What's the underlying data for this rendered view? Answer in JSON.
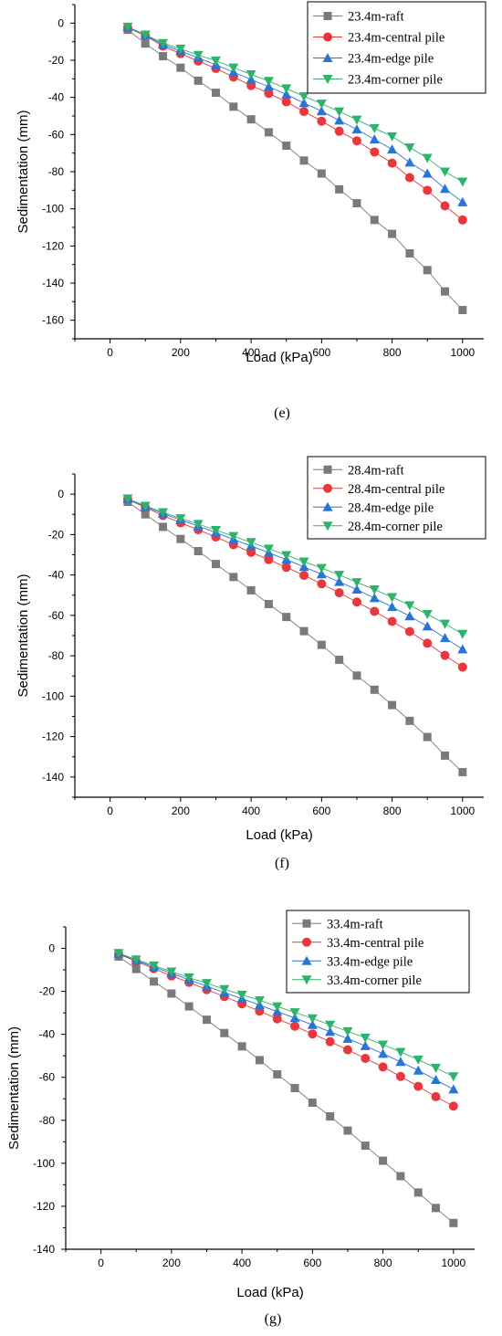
{
  "chart_data": [
    {
      "type": "line",
      "panel_label": "(e)",
      "xlabel": "Load (kPa)",
      "ylabel": "Sedimentation (mm)",
      "xlim": [
        -100,
        1060
      ],
      "ylim": [
        -170,
        10
      ],
      "xticks": [
        0,
        200,
        400,
        600,
        800,
        1000
      ],
      "yticks": [
        0,
        -20,
        -40,
        -60,
        -80,
        -100,
        -120,
        -140,
        -160
      ],
      "legend_position": "top-right",
      "x": [
        50,
        100,
        150,
        200,
        250,
        300,
        350,
        400,
        450,
        500,
        550,
        600,
        650,
        700,
        750,
        800,
        850,
        900,
        950,
        1000
      ],
      "series": [
        {
          "name": "23.4m-raft",
          "color": "#7a7a7a",
          "marker": "square",
          "values": [
            -3.6,
            -11,
            -17.8,
            -24,
            -31,
            -37.5,
            -45,
            -51.8,
            -58.8,
            -66,
            -74,
            -81,
            -89.5,
            -97,
            -106,
            -113.5,
            -124,
            -133,
            -144.5,
            -154.5
          ]
        },
        {
          "name": "23.4m-central pile",
          "color": "#e8383d",
          "marker": "circle",
          "values": [
            -2.4,
            -6.8,
            -12.4,
            -16.4,
            -20.4,
            -24.4,
            -29,
            -33.6,
            -37.8,
            -42.4,
            -47.6,
            -52.8,
            -58.2,
            -63.4,
            -69.4,
            -75.4,
            -83.2,
            -90,
            -98.4,
            -106
          ]
        },
        {
          "name": "23.4m-edge pile",
          "color": "#2a74d4",
          "marker": "triangle-up",
          "values": [
            -2.2,
            -6.4,
            -11.6,
            -15,
            -18.8,
            -22.4,
            -26.4,
            -30.4,
            -34.2,
            -38.4,
            -43,
            -47.4,
            -52.4,
            -57.2,
            -62.6,
            -68,
            -75,
            -81,
            -89.2,
            -96.4
          ]
        },
        {
          "name": "23.4m-corner pile",
          "color": "#2db36b",
          "marker": "triangle-down",
          "values": [
            -2.0,
            -6.2,
            -10.8,
            -13.8,
            -17.2,
            -20.2,
            -24,
            -27.6,
            -31.2,
            -35.2,
            -39.4,
            -43.4,
            -47.6,
            -52,
            -56.6,
            -61,
            -67,
            -72.6,
            -80,
            -85.4
          ]
        }
      ]
    },
    {
      "type": "line",
      "panel_label": "(f)",
      "xlabel": "Load (kPa)",
      "ylabel": "Sedimentation (mm)",
      "xlim": [
        -100,
        1060
      ],
      "ylim": [
        -150,
        10
      ],
      "xticks": [
        0,
        200,
        400,
        600,
        800,
        1000
      ],
      "yticks": [
        0,
        -20,
        -40,
        -60,
        -80,
        -100,
        -120,
        -140
      ],
      "legend_position": "top-right",
      "x": [
        50,
        100,
        150,
        200,
        250,
        300,
        350,
        400,
        450,
        500,
        550,
        600,
        650,
        700,
        750,
        800,
        850,
        900,
        950,
        1000
      ],
      "series": [
        {
          "name": "28.4m-raft",
          "color": "#7a7a7a",
          "marker": "square",
          "values": [
            -3.8,
            -10,
            -16.2,
            -22.2,
            -28.2,
            -34.6,
            -41,
            -47.6,
            -54.4,
            -60.8,
            -67.8,
            -74.6,
            -82,
            -89.8,
            -96.8,
            -104.4,
            -112.2,
            -120.2,
            -129.4,
            -137.6
          ]
        },
        {
          "name": "28.4m-central pile",
          "color": "#e8383d",
          "marker": "circle",
          "values": [
            -2.6,
            -6.6,
            -10.6,
            -14.2,
            -17.6,
            -21.2,
            -25,
            -28.8,
            -32.4,
            -36.2,
            -40.2,
            -44.4,
            -48.8,
            -53.4,
            -58,
            -63,
            -68,
            -73.8,
            -79.8,
            -85.6
          ]
        },
        {
          "name": "28.4m-edge pile",
          "color": "#2a74d4",
          "marker": "triangle-up",
          "values": [
            -2.4,
            -6.2,
            -9.6,
            -12.8,
            -15.8,
            -19,
            -22.4,
            -25.6,
            -29,
            -32.4,
            -36,
            -39.6,
            -43.4,
            -47.2,
            -51.4,
            -55.8,
            -60.4,
            -65.4,
            -71.2,
            -76.8
          ]
        },
        {
          "name": "28.4m-corner pile",
          "color": "#2db36b",
          "marker": "triangle-down",
          "values": [
            -2.2,
            -5.8,
            -9,
            -12,
            -14.8,
            -17.8,
            -20.8,
            -23.8,
            -27,
            -30.2,
            -33.4,
            -36.6,
            -40,
            -43.6,
            -47.2,
            -51,
            -55,
            -59.4,
            -64.2,
            -69.2
          ]
        }
      ]
    },
    {
      "type": "line",
      "panel_label": "(g)",
      "xlabel": "Load (kPa)",
      "ylabel": "Sedimentation (mm)",
      "xlim": [
        -100,
        1060
      ],
      "ylim": [
        -140,
        10
      ],
      "xticks": [
        0,
        200,
        400,
        600,
        800,
        1000
      ],
      "yticks": [
        0,
        -20,
        -40,
        -60,
        -80,
        -100,
        -120,
        -140
      ],
      "legend_position": "top-right",
      "x": [
        50,
        100,
        150,
        200,
        250,
        300,
        350,
        400,
        450,
        500,
        550,
        600,
        650,
        700,
        750,
        800,
        850,
        900,
        950,
        1000
      ],
      "series": [
        {
          "name": "33.4m-raft",
          "color": "#7a7a7a",
          "marker": "square",
          "values": [
            -3.8,
            -9.6,
            -15.4,
            -21,
            -27,
            -33.2,
            -39.4,
            -45.6,
            -52,
            -58.6,
            -65,
            -71.8,
            -78.2,
            -84.8,
            -91.8,
            -98.8,
            -106,
            -113.6,
            -120.8,
            -127.8
          ]
        },
        {
          "name": "33.4m-central pile",
          "color": "#e8383d",
          "marker": "circle",
          "values": [
            -2.6,
            -6,
            -9.4,
            -12.8,
            -15.8,
            -19.2,
            -22.4,
            -25.8,
            -29.2,
            -32.8,
            -36.2,
            -39.8,
            -43.4,
            -47.2,
            -51.2,
            -55.2,
            -59.6,
            -64.2,
            -69,
            -73.4
          ]
        },
        {
          "name": "33.4m-edge pile",
          "color": "#2a74d4",
          "marker": "triangle-up",
          "values": [
            -2.4,
            -5.6,
            -8.6,
            -11.6,
            -14.6,
            -17.6,
            -20.6,
            -23.4,
            -26.4,
            -29.4,
            -32.4,
            -35.6,
            -38.8,
            -42,
            -45.4,
            -49,
            -52.8,
            -56.8,
            -61.2,
            -65.6
          ]
        },
        {
          "name": "33.4m-corner pile",
          "color": "#2db36b",
          "marker": "triangle-down",
          "values": [
            -2.2,
            -5.2,
            -8,
            -10.8,
            -13.6,
            -16.2,
            -19,
            -21.6,
            -24.2,
            -27,
            -29.8,
            -32.6,
            -35.6,
            -38.6,
            -41.6,
            -44.8,
            -48.2,
            -51.8,
            -55.6,
            -59.6
          ]
        }
      ]
    }
  ]
}
